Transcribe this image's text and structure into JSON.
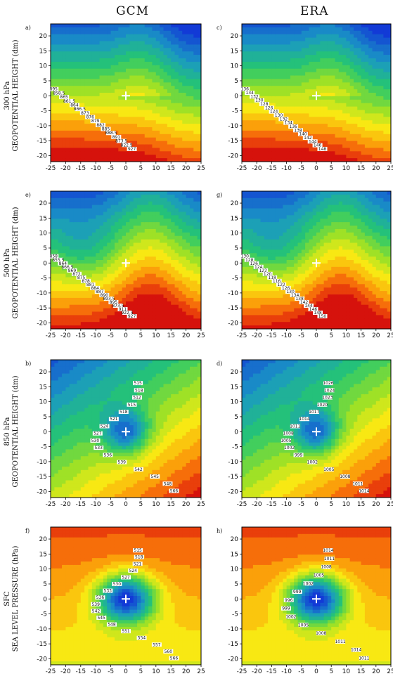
{
  "columns": [
    "GCM",
    "ERA"
  ],
  "rows": [
    {
      "level": "300 hPa",
      "ylabel": "GEOPOTENTIAL HEIGHT (dm)"
    },
    {
      "level": "500 hPa",
      "ylabel": "GEOPOTENTIAL HEIGHT (dm)"
    },
    {
      "level": "850 hPa",
      "ylabel": "GEOPOTENTIAL HEIGHT (dm)"
    },
    {
      "level": "SFC",
      "ylabel": "SEA LEVEL PRESSURE (hPa)"
    }
  ],
  "chart_data": [
    {
      "panel": "a)",
      "type": "heatmap",
      "column": "GCM",
      "level": "300 hPa",
      "xlim": [
        -25,
        25
      ],
      "ylim": [
        -22,
        24
      ],
      "xticks": [
        "-25",
        "-20",
        "-15",
        "-10",
        "-5",
        "0",
        "5",
        "10",
        "15",
        "20",
        "25"
      ],
      "yticks": [
        "20",
        "15",
        "10",
        "5",
        "0",
        "-5",
        "-10",
        "-15",
        "-20"
      ],
      "contour_labels": [
        "895",
        "858.5",
        "865",
        "861.5",
        "864",
        "866.5",
        "873",
        "876",
        "879",
        "882",
        "885",
        "888.5",
        "891",
        "873.5",
        "822.5",
        "927"
      ]
    },
    {
      "panel": "e)",
      "type": "heatmap",
      "column": "ERA",
      "level": "300 hPa",
      "xlim": [
        -25,
        25
      ],
      "ylim": [
        -22,
        24
      ],
      "xticks": [
        "-25",
        "-20",
        "-15",
        "-10",
        "-5",
        "0",
        "5",
        "10",
        "15",
        "20",
        "25"
      ],
      "yticks": [
        "20",
        "15",
        "10",
        "5",
        "0",
        "-5",
        "-10",
        "-15",
        "-20"
      ],
      "contour_labels": [
        "858",
        "855.5",
        "864",
        "866.5",
        "869",
        "872",
        "875",
        "878",
        "881",
        "884",
        "887",
        "890",
        "893.5",
        "895",
        "873.5",
        "911",
        "922.5",
        "927"
      ]
    },
    {
      "panel": "b)",
      "type": "heatmap",
      "column": "GCM",
      "level": "500 hPa",
      "xlim": [
        -25,
        25
      ],
      "ylim": [
        -22,
        24
      ],
      "xticks": [
        "-25",
        "-20",
        "-15",
        "-10",
        "-5",
        "0",
        "5",
        "10",
        "15",
        "20",
        "25"
      ],
      "yticks": [
        "20",
        "15",
        "10",
        "5",
        "0",
        "-5",
        "-10",
        "-15",
        "-20"
      ],
      "contour_labels": [
        "515",
        "518",
        "512",
        "515",
        "518",
        "521",
        "524",
        "527",
        "530",
        "533",
        "536",
        "539",
        "542",
        "545",
        "548",
        "566"
      ]
    },
    {
      "panel": "f)",
      "type": "heatmap",
      "column": "ERA",
      "level": "500 hPa",
      "xlim": [
        -25,
        25
      ],
      "ylim": [
        -22,
        24
      ],
      "xticks": [
        "-25",
        "-20",
        "-15",
        "-10",
        "-5",
        "0",
        "5",
        "10",
        "15",
        "20",
        "25"
      ],
      "yticks": [
        "20",
        "15",
        "10",
        "5",
        "0",
        "-5",
        "-10",
        "-15",
        "-20"
      ],
      "contour_labels": [
        "515",
        "518",
        "521",
        "524",
        "527",
        "530",
        "533",
        "536",
        "539",
        "542",
        "545",
        "548",
        "551",
        "554",
        "557",
        "560",
        "566"
      ]
    },
    {
      "panel": "c)",
      "type": "heatmap",
      "column": "GCM",
      "level": "850 hPa",
      "xlim": [
        -25,
        25
      ],
      "ylim": [
        -22,
        24
      ],
      "xticks": [
        "-25",
        "-20",
        "-15",
        "-10",
        "-5",
        "0",
        "5",
        "10",
        "15",
        "20",
        "25"
      ],
      "yticks": [
        "20",
        "15",
        "10",
        "5",
        "0",
        "-5",
        "-10",
        "-15",
        "-20"
      ],
      "contour_labels": [
        "136",
        "134",
        "132",
        "130",
        "128",
        "126",
        "124",
        "130",
        "132",
        "134",
        "136",
        "138",
        "140",
        "142",
        "144",
        "146",
        "148"
      ]
    },
    {
      "panel": "g)",
      "type": "heatmap",
      "column": "ERA",
      "level": "850 hPa",
      "xlim": [
        -25,
        25
      ],
      "ylim": [
        -22,
        24
      ],
      "xticks": [
        "-25",
        "-20",
        "-15",
        "-10",
        "-5",
        "0",
        "5",
        "10",
        "15",
        "20",
        "25"
      ],
      "yticks": [
        "20",
        "15",
        "10",
        "5",
        "0",
        "-5",
        "-10",
        "-15",
        "-20"
      ],
      "contour_labels": [
        "130",
        "128",
        "126",
        "124",
        "122",
        "120",
        "118",
        "116",
        "122",
        "126",
        "130",
        "134",
        "138",
        "142",
        "144",
        "146",
        "148",
        "150"
      ]
    },
    {
      "panel": "d)",
      "type": "heatmap",
      "column": "GCM",
      "level": "SFC",
      "xlim": [
        -25,
        25
      ],
      "ylim": [
        -22,
        24
      ],
      "xticks": [
        "-25",
        "-20",
        "-15",
        "-10",
        "-5",
        "0",
        "5",
        "10",
        "15",
        "20",
        "25"
      ],
      "yticks": [
        "20",
        "15",
        "10",
        "5",
        "0",
        "-5",
        "-10",
        "-15",
        "-20"
      ],
      "contour_labels": [
        "1026",
        "1024",
        "1023",
        "1020",
        "1017",
        "1014",
        "1011",
        "1008",
        "1005",
        "1002",
        "999",
        "1002",
        "1005",
        "1008",
        "1011",
        "1014"
      ]
    },
    {
      "panel": "h)",
      "type": "heatmap",
      "column": "ERA",
      "level": "SFC",
      "xlim": [
        -25,
        25
      ],
      "ylim": [
        -22,
        24
      ],
      "xticks": [
        "-25",
        "-20",
        "-15",
        "-10",
        "-5",
        "0",
        "5",
        "10",
        "15",
        "20",
        "25"
      ],
      "yticks": [
        "20",
        "15",
        "10",
        "5",
        "0",
        "-5",
        "-10",
        "-15",
        "-20"
      ],
      "contour_labels": [
        "1014",
        "1011",
        "1008",
        "1005",
        "1002",
        "999",
        "996",
        "999",
        "1002",
        "1005",
        "1008",
        "1011",
        "1014",
        "1011"
      ]
    }
  ]
}
